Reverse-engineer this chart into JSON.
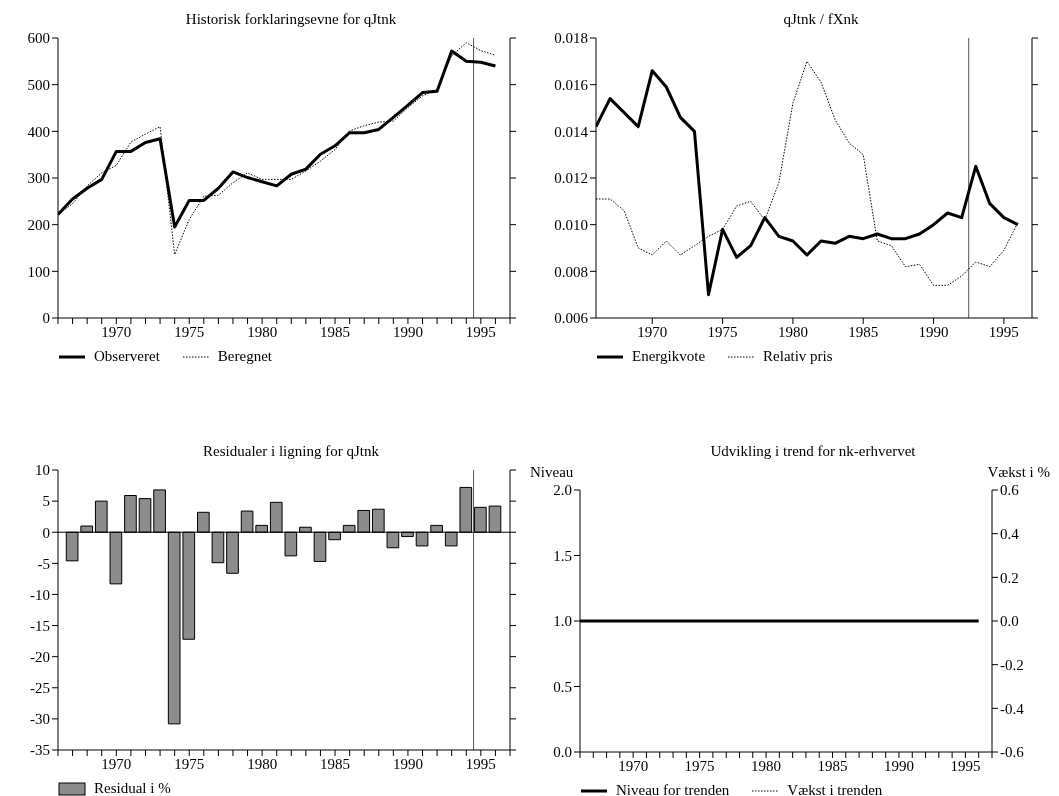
{
  "chart_data": [
    {
      "type": "line",
      "title": "Historisk forklaringsevne for qJtnk",
      "legend": "bottom left",
      "x": [
        1966,
        1967,
        1968,
        1969,
        1970,
        1971,
        1972,
        1973,
        1974,
        1975,
        1976,
        1977,
        1978,
        1979,
        1980,
        1981,
        1982,
        1983,
        1984,
        1985,
        1986,
        1987,
        1988,
        1989,
        1990,
        1991,
        1992,
        1993,
        1994,
        1995,
        1996
      ],
      "series": [
        {
          "name": "Observeret",
          "color": "#000000",
          "line_style": "solid",
          "values": [
            222,
            255,
            278,
            297,
            357,
            357,
            376,
            384,
            195,
            252,
            252,
            278,
            313,
            301,
            292,
            283,
            308,
            319,
            351,
            369,
            397,
            397,
            404,
            430,
            456,
            483,
            486,
            572,
            550,
            548,
            540
          ]
        },
        {
          "name": "Beregnet",
          "color": "#000000",
          "line_style": "dotted",
          "values": [
            222,
            245,
            283,
            311,
            327,
            377,
            394,
            410,
            136,
            211,
            261,
            263,
            290,
            311,
            297,
            297,
            297,
            315,
            336,
            361,
            401,
            412,
            420,
            422,
            451,
            476,
            490,
            562,
            590,
            573,
            563
          ]
        }
      ],
      "xlim": [
        1966,
        1997
      ],
      "xticks": [
        {
          "value": 1966,
          "label": null
        },
        {
          "value": 1967,
          "label": null
        },
        {
          "value": 1968,
          "label": null
        },
        {
          "value": 1969,
          "label": null
        },
        1970,
        {
          "value": 1971,
          "label": null
        },
        {
          "value": 1972,
          "label": null
        },
        {
          "value": 1973,
          "label": null
        },
        {
          "value": 1974,
          "label": null
        },
        1975,
        {
          "value": 1976,
          "label": null
        },
        {
          "value": 1977,
          "label": null
        },
        {
          "value": 1978,
          "label": null
        },
        {
          "value": 1979,
          "label": null
        },
        1980,
        {
          "value": 1981,
          "label": null
        },
        {
          "value": 1982,
          "label": null
        },
        {
          "value": 1983,
          "label": null
        },
        {
          "value": 1984,
          "label": null
        },
        1985,
        {
          "value": 1986,
          "label": null
        },
        {
          "value": 1987,
          "label": null
        },
        {
          "value": 1988,
          "label": null
        },
        {
          "value": 1989,
          "label": null
        },
        1990,
        {
          "value": 1991,
          "label": null
        },
        {
          "value": 1992,
          "label": null
        },
        {
          "value": 1993,
          "label": null
        },
        {
          "value": 1994,
          "label": null
        },
        1995,
        {
          "value": 1996,
          "label": null
        },
        {
          "value": 1997,
          "label": null
        }
      ],
      "ylim": [
        0,
        600
      ],
      "yticks": [
        0,
        100,
        200,
        300,
        400,
        500,
        600
      ],
      "ref_lines": [
        {
          "axis": "x",
          "value": 1994.5,
          "color": "#555555"
        }
      ]
    },
    {
      "type": "line",
      "title": "qJtnk / fXnk",
      "legend": "bottom left",
      "x": [
        1966,
        1967,
        1968,
        1969,
        1970,
        1971,
        1972,
        1973,
        1974,
        1975,
        1976,
        1977,
        1978,
        1979,
        1980,
        1981,
        1982,
        1983,
        1984,
        1985,
        1986,
        1987,
        1988,
        1989,
        1990,
        1991,
        1992,
        1993,
        1994,
        1995,
        1996
      ],
      "series": [
        {
          "name": "Energikvote",
          "color": "#000000",
          "line_style": "solid",
          "values": [
            0.0142,
            0.0154,
            0.0148,
            0.0142,
            0.0166,
            0.0159,
            0.0146,
            0.014,
            0.007,
            0.0098,
            0.0086,
            0.0091,
            0.0103,
            0.0095,
            0.0093,
            0.0087,
            0.0093,
            0.0092,
            0.0095,
            0.0094,
            0.0096,
            0.0094,
            0.0094,
            0.0096,
            0.01,
            0.0105,
            0.0103,
            0.0125,
            0.0109,
            0.0103,
            0.01
          ]
        },
        {
          "name": "Relativ pris",
          "color": "#000000",
          "line_style": "dotted",
          "values": [
            0.0111,
            0.0111,
            0.0106,
            0.009,
            0.0087,
            0.0093,
            0.0087,
            0.0091,
            0.0095,
            0.0098,
            0.0108,
            0.011,
            0.0102,
            0.0118,
            0.0152,
            0.017,
            0.0161,
            0.0145,
            0.0135,
            0.013,
            0.0093,
            0.0091,
            0.0082,
            0.0083,
            0.0074,
            0.0074,
            0.0078,
            0.0084,
            0.0082,
            0.0089,
            0.0101
          ]
        }
      ],
      "xlim": [
        1966,
        1997
      ],
      "xticks": [
        1970,
        1975,
        1980,
        1985,
        1990,
        1995
      ],
      "ylim": [
        0.006,
        0.018
      ],
      "yticks": [
        0.006,
        0.008,
        {
          "value": 0.01,
          "label": "0.010"
        },
        0.012,
        0.014,
        0.016,
        0.018
      ],
      "ref_lines": [
        {
          "axis": "x",
          "value": 1992.5,
          "color": "#555555"
        }
      ]
    },
    {
      "type": "bar",
      "title": "Residualer i ligning for qJtnk",
      "legend": "bottom left",
      "x": [
        1967,
        1968,
        1969,
        1970,
        1971,
        1972,
        1973,
        1974,
        1975,
        1976,
        1977,
        1978,
        1979,
        1980,
        1981,
        1982,
        1983,
        1984,
        1985,
        1986,
        1987,
        1988,
        1989,
        1990,
        1991,
        1992,
        1993,
        1994,
        1995,
        1996
      ],
      "series": [
        {
          "name": "Residual i %",
          "color": "#8c8c8c",
          "values": [
            -4.6,
            1.0,
            5.0,
            -8.3,
            5.9,
            5.4,
            6.8,
            -30.8,
            -17.2,
            3.2,
            -4.9,
            -6.6,
            3.4,
            1.1,
            4.8,
            -3.8,
            0.8,
            -4.7,
            -1.2,
            1.1,
            3.5,
            3.7,
            -2.5,
            -0.7,
            -2.2,
            1.1,
            -2.2,
            7.2,
            4.0,
            4.2
          ]
        }
      ],
      "xlim": [
        1966,
        1997
      ],
      "xticks": [
        {
          "value": 1966,
          "label": null
        },
        {
          "value": 1967,
          "label": null
        },
        {
          "value": 1968,
          "label": null
        },
        {
          "value": 1969,
          "label": null
        },
        1970,
        {
          "value": 1971,
          "label": null
        },
        {
          "value": 1972,
          "label": null
        },
        {
          "value": 1973,
          "label": null
        },
        {
          "value": 1974,
          "label": null
        },
        1975,
        {
          "value": 1976,
          "label": null
        },
        {
          "value": 1977,
          "label": null
        },
        {
          "value": 1978,
          "label": null
        },
        {
          "value": 1979,
          "label": null
        },
        1980,
        {
          "value": 1981,
          "label": null
        },
        {
          "value": 1982,
          "label": null
        },
        {
          "value": 1983,
          "label": null
        },
        {
          "value": 1984,
          "label": null
        },
        1985,
        {
          "value": 1986,
          "label": null
        },
        {
          "value": 1987,
          "label": null
        },
        {
          "value": 1988,
          "label": null
        },
        {
          "value": 1989,
          "label": null
        },
        1990,
        {
          "value": 1991,
          "label": null
        },
        {
          "value": 1992,
          "label": null
        },
        {
          "value": 1993,
          "label": null
        },
        {
          "value": 1994,
          "label": null
        },
        1995,
        {
          "value": 1996,
          "label": null
        },
        {
          "value": 1997,
          "label": null
        }
      ],
      "ylim": [
        -35,
        10
      ],
      "yticks": [
        -35,
        -30,
        -25,
        -20,
        -15,
        -10,
        -5,
        0,
        5,
        10
      ],
      "ref_lines": [
        {
          "axis": "y",
          "value": 0,
          "color": "#000000"
        },
        {
          "axis": "x",
          "value": 1994.5,
          "color": "#555555"
        }
      ]
    },
    {
      "type": "line",
      "title": "Udvikling i trend for nk-erhvervet",
      "ylabel": "Niveau",
      "y2label": "Vækst i %",
      "legend": "bottom left",
      "x": [
        1966,
        1967,
        1968,
        1969,
        1970,
        1971,
        1972,
        1973,
        1974,
        1975,
        1976,
        1977,
        1978,
        1979,
        1980,
        1981,
        1982,
        1983,
        1984,
        1985,
        1986,
        1987,
        1988,
        1989,
        1990,
        1991,
        1992,
        1993,
        1994,
        1995,
        1996
      ],
      "series": [
        {
          "name": "Niveau for trenden",
          "color": "#000000",
          "line_style": "solid",
          "values": [
            1,
            1,
            1,
            1,
            1,
            1,
            1,
            1,
            1,
            1,
            1,
            1,
            1,
            1,
            1,
            1,
            1,
            1,
            1,
            1,
            1,
            1,
            1,
            1,
            1,
            1,
            1,
            1,
            1,
            1,
            1
          ]
        },
        {
          "name": "Vækst i trenden",
          "color": "#000000",
          "line_style": "dotted",
          "values": [
            null,
            null,
            null,
            null,
            null,
            null,
            null,
            null,
            null,
            null,
            null,
            null,
            null,
            null,
            null,
            null,
            null,
            null,
            null,
            null,
            null,
            null,
            null,
            null,
            null,
            null,
            null,
            null,
            null,
            null,
            null
          ]
        }
      ],
      "xlim": [
        1966,
        1997
      ],
      "xticks": [
        {
          "value": 1966,
          "label": null
        },
        {
          "value": 1967,
          "label": null
        },
        {
          "value": 1968,
          "label": null
        },
        {
          "value": 1969,
          "label": null
        },
        1970,
        {
          "value": 1971,
          "label": null
        },
        {
          "value": 1972,
          "label": null
        },
        {
          "value": 1973,
          "label": null
        },
        {
          "value": 1974,
          "label": null
        },
        1975,
        {
          "value": 1976,
          "label": null
        },
        {
          "value": 1977,
          "label": null
        },
        {
          "value": 1978,
          "label": null
        },
        {
          "value": 1979,
          "label": null
        },
        1980,
        {
          "value": 1981,
          "label": null
        },
        {
          "value": 1982,
          "label": null
        },
        {
          "value": 1983,
          "label": null
        },
        {
          "value": 1984,
          "label": null
        },
        1985,
        {
          "value": 1986,
          "label": null
        },
        {
          "value": 1987,
          "label": null
        },
        {
          "value": 1988,
          "label": null
        },
        {
          "value": 1989,
          "label": null
        },
        1990,
        {
          "value": 1991,
          "label": null
        },
        {
          "value": 1992,
          "label": null
        },
        {
          "value": 1993,
          "label": null
        },
        {
          "value": 1994,
          "label": null
        },
        1995,
        {
          "value": 1996,
          "label": null
        },
        {
          "value": 1997,
          "label": null
        }
      ],
      "ylim": [
        0,
        2
      ],
      "yticks": [
        {
          "value": 0,
          "label": "0.0"
        },
        0.5,
        {
          "value": 1,
          "label": "1.0"
        },
        1.5,
        {
          "value": 2,
          "label": "2.0"
        }
      ],
      "y2lim": [
        -0.6,
        0.6
      ],
      "y2ticks": [
        -0.6,
        -0.4,
        -0.2,
        {
          "value": 0,
          "label": "0.0"
        },
        0.2,
        0.4,
        0.6
      ]
    }
  ]
}
